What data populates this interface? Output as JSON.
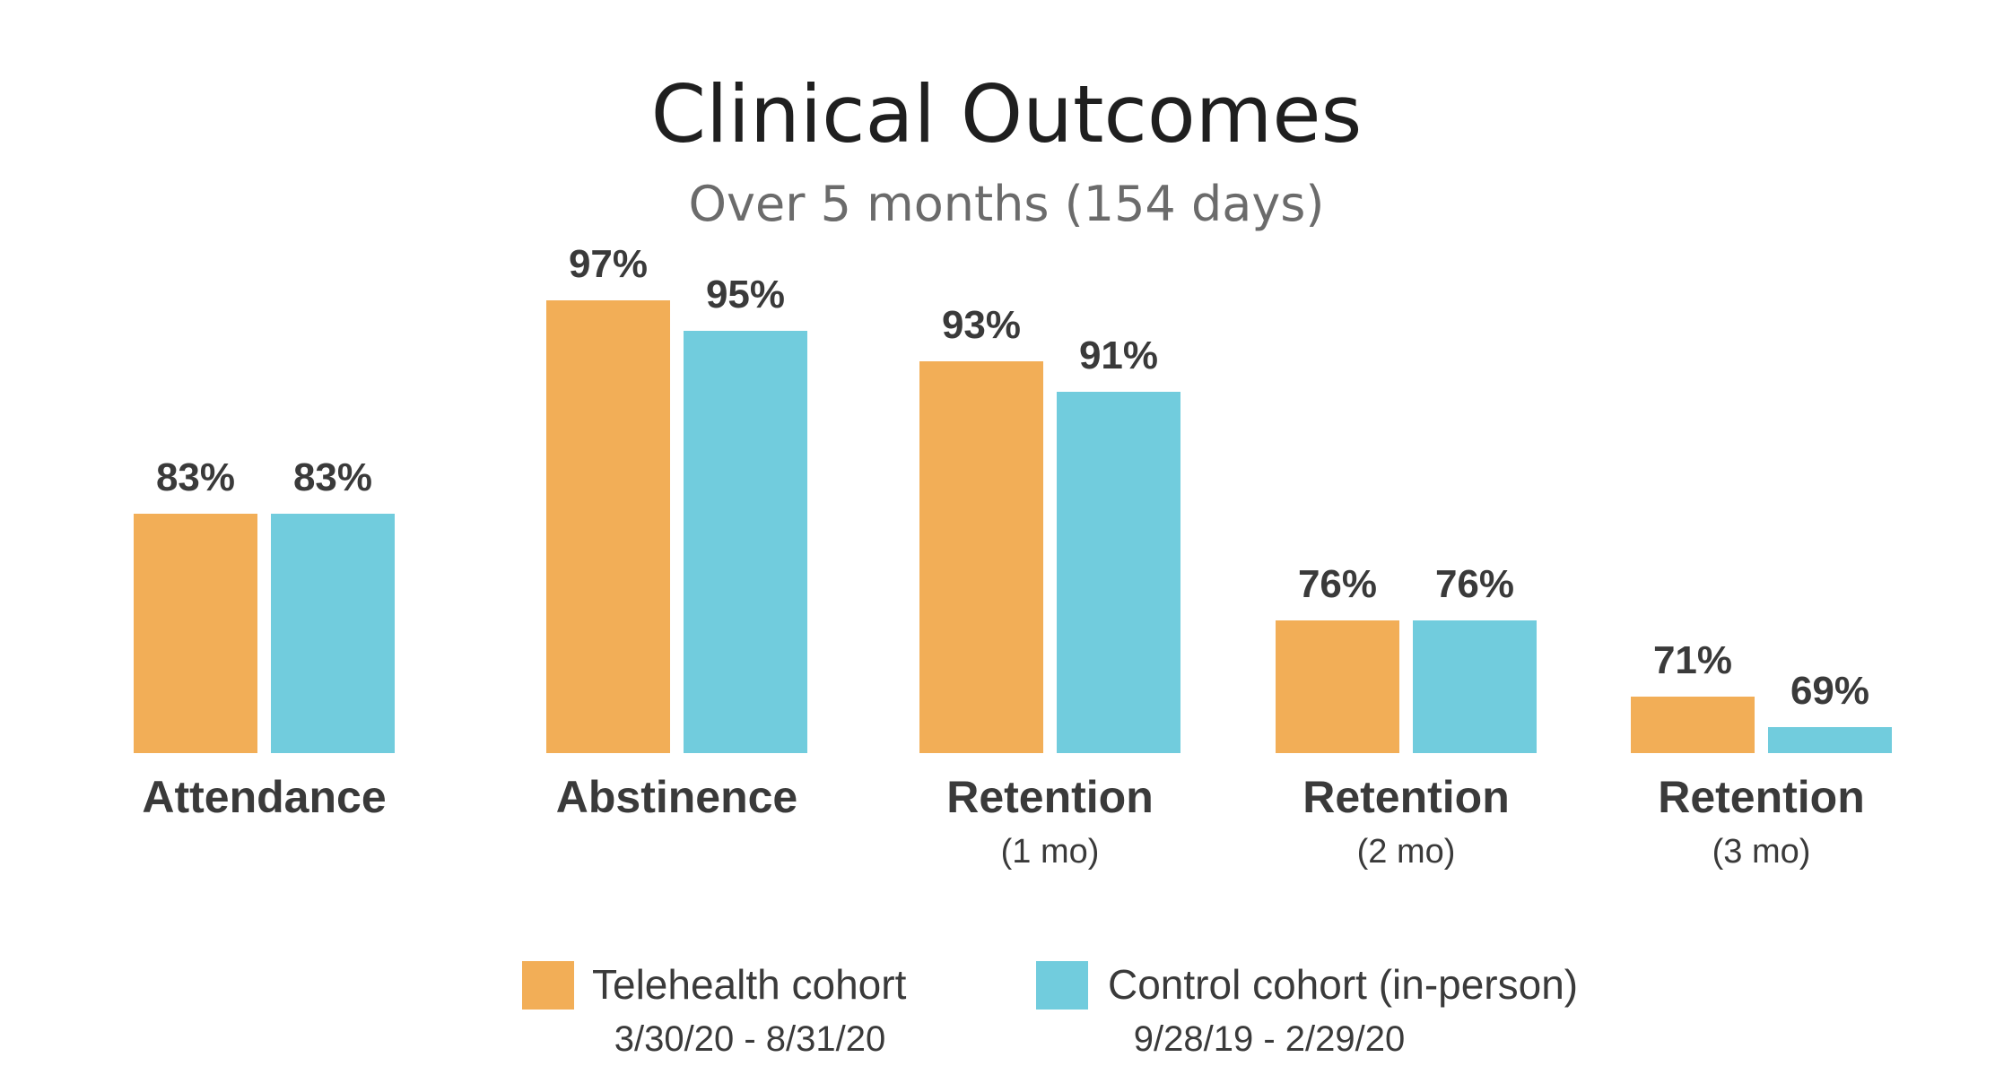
{
  "chart_data": {
    "type": "bar",
    "title": "Clinical Outcomes",
    "subtitle": "Over 5 months (154 days)",
    "categories": [
      {
        "label": "Attendance",
        "sublabel": ""
      },
      {
        "label": "Abstinence",
        "sublabel": ""
      },
      {
        "label": "Retention",
        "sublabel": "(1 mo)"
      },
      {
        "label": "Retention",
        "sublabel": "(2 mo)"
      },
      {
        "label": "Retention",
        "sublabel": "(3 mo)"
      }
    ],
    "series": [
      {
        "name": "Telehealth cohort",
        "dates": "3/30/20 - 8/31/20",
        "color": "#F2AE57",
        "values": [
          83,
          97,
          93,
          76,
          71
        ],
        "value_labels": [
          "83%",
          "97%",
          "93%",
          "76%",
          "71%"
        ]
      },
      {
        "name": "Control cohort (in-person)",
        "dates": "9/28/19 - 2/29/20",
        "color": "#71CCDD",
        "values": [
          83,
          95,
          91,
          76,
          69
        ],
        "value_labels": [
          "83%",
          "95%",
          "91%",
          "76%",
          "69%"
        ]
      }
    ],
    "ylim": [
      0,
      100
    ],
    "grid": false,
    "legend_position": "bottom"
  }
}
